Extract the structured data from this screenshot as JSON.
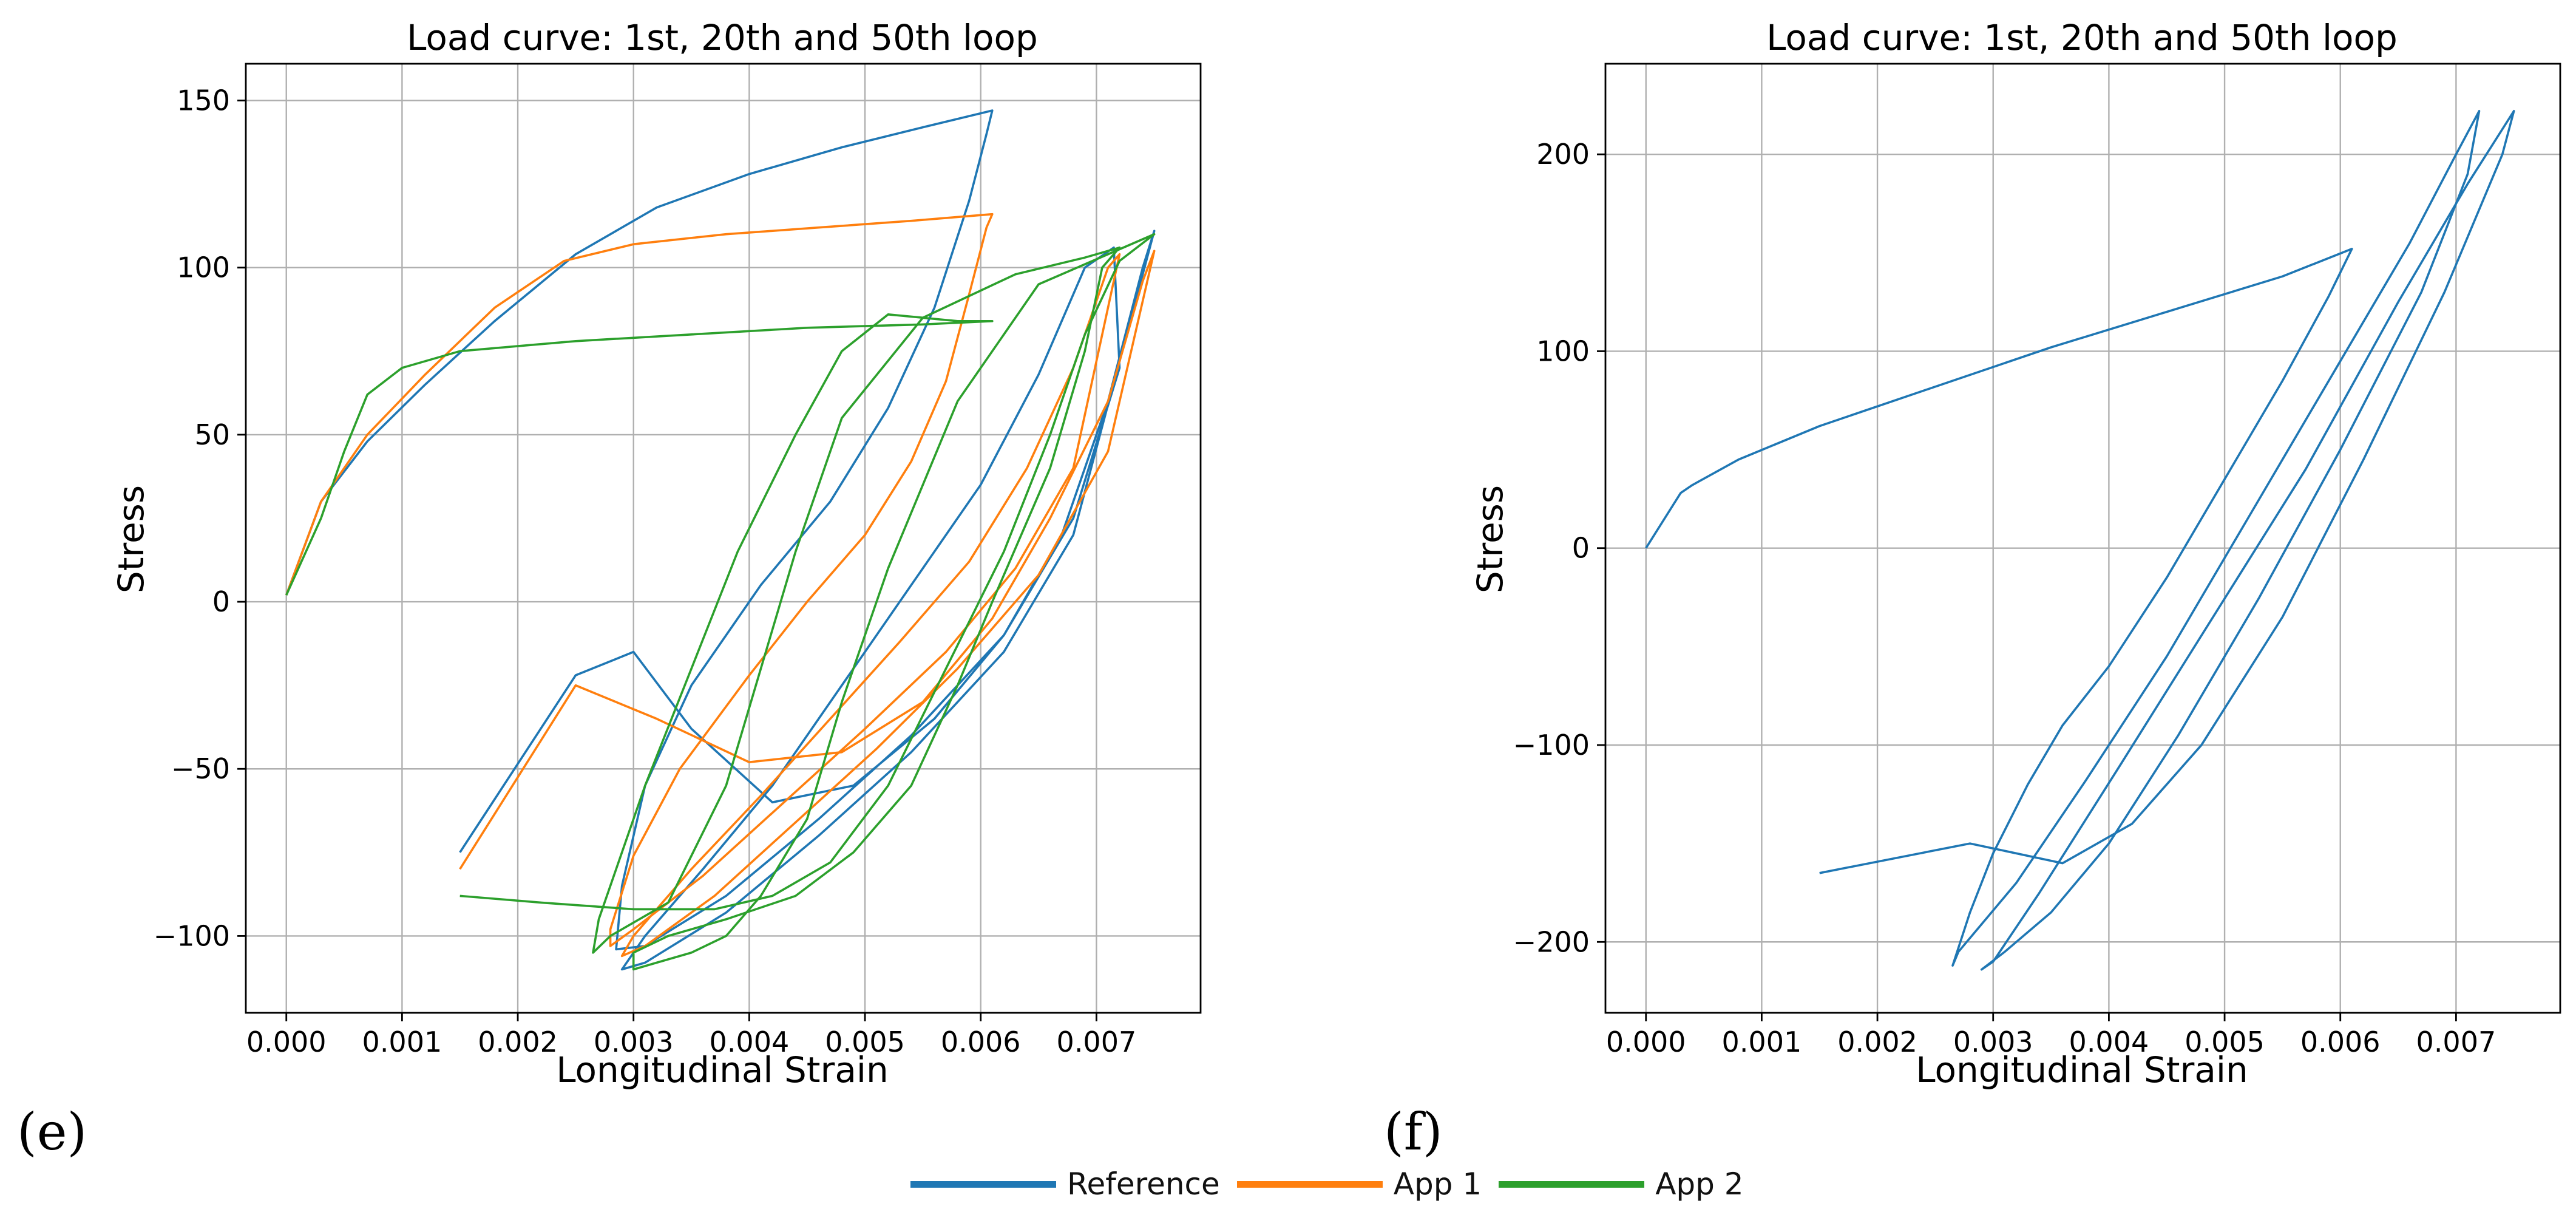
{
  "figure": {
    "panel_labels": [
      "(e)",
      "(f)"
    ],
    "legend": [
      {
        "label": "Reference",
        "color": "#1f77b4"
      },
      {
        "label": "App 1",
        "color": "#ff7f0e"
      },
      {
        "label": "App 2",
        "color": "#2ca02c"
      }
    ]
  },
  "chart_data": [
    {
      "type": "line",
      "title": "Load curve: 1st, 20th and 50th loop",
      "xlabel": "Longitudinal Strain",
      "ylabel": "Stress",
      "xlim": [
        -0.00035,
        0.0079
      ],
      "ylim": [
        -123,
        161
      ],
      "xticks": [
        0.0,
        0.001,
        0.002,
        0.003,
        0.004,
        0.005,
        0.006,
        0.007
      ],
      "xtick_labels": [
        "0.000",
        "0.001",
        "0.002",
        "0.003",
        "0.004",
        "0.005",
        "0.006",
        "0.007"
      ],
      "yticks": [
        -100,
        -50,
        0,
        50,
        100,
        150
      ],
      "ytick_labels": [
        "−100",
        "−50",
        "0",
        "50",
        "100",
        "150"
      ],
      "grid": true,
      "series": [
        {
          "name": "Reference",
          "color": "#1f77b4",
          "x": [
            0.0,
            0.0003,
            0.0007,
            0.0012,
            0.0018,
            0.0025,
            0.0032,
            0.004,
            0.0048,
            0.0055,
            0.0061,
            0.00605,
            0.0059,
            0.0056,
            0.0052,
            0.0047,
            0.0041,
            0.0035,
            0.0031,
            0.0029,
            0.00285,
            0.0031,
            0.0038,
            0.0046,
            0.0054,
            0.0062,
            0.0068,
            0.0072,
            0.00715,
            0.0069,
            0.0065,
            0.006,
            0.0054,
            0.0048,
            0.0042,
            0.0036,
            0.0031,
            0.0029,
            0.0029,
            0.0031,
            0.0038,
            0.0046,
            0.0054,
            0.0062,
            0.0068,
            0.0075,
            0.0074,
            0.0071,
            0.0067,
            0.0062,
            0.0056,
            0.0049,
            0.0042,
            0.0035,
            0.003,
            0.0025,
            0.0015
          ],
          "y": [
            2,
            30,
            48,
            65,
            84,
            104,
            118,
            128,
            136,
            142,
            147,
            140,
            120,
            88,
            58,
            30,
            5,
            -25,
            -55,
            -85,
            -104,
            -103,
            -88,
            -65,
            -40,
            -10,
            25,
            70,
            106,
            100,
            68,
            35,
            5,
            -25,
            -55,
            -80,
            -100,
            -110,
            -110,
            -108,
            -93,
            -70,
            -45,
            -15,
            20,
            111,
            100,
            60,
            20,
            -10,
            -35,
            -55,
            -60,
            -38,
            -15,
            -22,
            -75
          ]
        },
        {
          "name": "App 1",
          "color": "#ff7f0e",
          "x": [
            0.0,
            0.0003,
            0.0007,
            0.0012,
            0.0018,
            0.0024,
            0.003,
            0.0038,
            0.0046,
            0.0054,
            0.0061,
            0.00605,
            0.0059,
            0.0057,
            0.0054,
            0.005,
            0.0045,
            0.004,
            0.0034,
            0.003,
            0.0028,
            0.0028,
            0.003,
            0.0036,
            0.0043,
            0.005,
            0.0057,
            0.0063,
            0.0068,
            0.0072,
            0.0071,
            0.0068,
            0.0064,
            0.0059,
            0.0053,
            0.0047,
            0.0041,
            0.0035,
            0.003,
            0.0029,
            0.0031,
            0.0037,
            0.0044,
            0.0051,
            0.0058,
            0.0065,
            0.0071,
            0.0075,
            0.0074,
            0.0071,
            0.0066,
            0.0061,
            0.0055,
            0.0048,
            0.004,
            0.0032,
            0.0025,
            0.0015
          ],
          "y": [
            2,
            30,
            50,
            68,
            88,
            102,
            107,
            110,
            112,
            114,
            116,
            112,
            92,
            66,
            42,
            20,
            0,
            -22,
            -50,
            -76,
            -98,
            -103,
            -98,
            -82,
            -60,
            -38,
            -15,
            10,
            40,
            104,
            100,
            70,
            40,
            12,
            -12,
            -35,
            -58,
            -80,
            -100,
            -106,
            -103,
            -88,
            -66,
            -44,
            -20,
            8,
            45,
            105,
            96,
            60,
            25,
            -5,
            -30,
            -45,
            -48,
            -35,
            -25,
            -80
          ]
        },
        {
          "name": "App 2",
          "color": "#2ca02c",
          "x": [
            0.0,
            0.0003,
            0.0005,
            0.0007,
            0.001,
            0.0015,
            0.0025,
            0.0035,
            0.0045,
            0.0055,
            0.0061,
            0.0058,
            0.0052,
            0.0048,
            0.0044,
            0.0039,
            0.0035,
            0.0031,
            0.00285,
            0.0027,
            0.00265,
            0.0028,
            0.0033,
            0.0038,
            0.0041,
            0.0044,
            0.0048,
            0.0055,
            0.0063,
            0.0069,
            0.0072,
            0.00705,
            0.0069,
            0.0066,
            0.0061,
            0.0058,
            0.0054,
            0.0049,
            0.0044,
            0.0038,
            0.0033,
            0.003,
            0.003,
            0.0032,
            0.0035,
            0.0038,
            0.0041,
            0.0045,
            0.0048,
            0.0052,
            0.0058,
            0.0065,
            0.0075,
            0.0072,
            0.0069,
            0.0066,
            0.0062,
            0.0057,
            0.0052,
            0.0047,
            0.0042,
            0.0037,
            0.003,
            0.0022,
            0.0015
          ],
          "y": [
            2,
            25,
            45,
            62,
            70,
            75,
            78,
            80,
            82,
            83,
            84,
            84,
            86,
            75,
            50,
            15,
            -20,
            -55,
            -80,
            -95,
            -105,
            -100,
            -90,
            -55,
            -20,
            15,
            55,
            85,
            98,
            103,
            106,
            100,
            75,
            40,
            0,
            -25,
            -55,
            -75,
            -88,
            -95,
            -100,
            -105,
            -110,
            -108,
            -105,
            -100,
            -88,
            -65,
            -30,
            10,
            60,
            95,
            110,
            102,
            80,
            50,
            15,
            -20,
            -55,
            -78,
            -88,
            -92,
            -92,
            -90,
            -88
          ]
        }
      ]
    },
    {
      "type": "line",
      "title": "Load curve: 1st, 20th and 50th loop",
      "xlabel": "Longitudinal Strain",
      "ylabel": "Stress",
      "xlim": [
        -0.00035,
        0.0079
      ],
      "ylim": [
        -236,
        246
      ],
      "xticks": [
        0.0,
        0.001,
        0.002,
        0.003,
        0.004,
        0.005,
        0.006,
        0.007
      ],
      "xtick_labels": [
        "0.000",
        "0.001",
        "0.002",
        "0.003",
        "0.004",
        "0.005",
        "0.006",
        "0.007"
      ],
      "yticks": [
        -200,
        -100,
        0,
        100,
        200
      ],
      "ytick_labels": [
        "−200",
        "−100",
        "0",
        "100",
        "200"
      ],
      "grid": true,
      "series": [
        {
          "name": "Reference",
          "color": "#1f77b4",
          "x": [
            0.0,
            0.0003,
            0.0004,
            0.0008,
            0.0015,
            0.0025,
            0.0035,
            0.0045,
            0.0055,
            0.0061,
            0.0059,
            0.0055,
            0.005,
            0.0045,
            0.004,
            0.0036,
            0.0033,
            0.003,
            0.0028,
            0.00265,
            0.0027,
            0.0032,
            0.0038,
            0.0045,
            0.0052,
            0.006,
            0.0066,
            0.007,
            0.0072,
            0.0071,
            0.0067,
            0.006,
            0.0053,
            0.0046,
            0.004,
            0.0035,
            0.0031,
            0.0029,
            0.003,
            0.0034,
            0.0041,
            0.0049,
            0.0057,
            0.0065,
            0.0071,
            0.0075,
            0.0074,
            0.0069,
            0.0062,
            0.0055,
            0.0048,
            0.0042,
            0.0036,
            0.0028,
            0.0015
          ],
          "y": [
            0,
            28,
            32,
            45,
            62,
            82,
            102,
            120,
            138,
            152,
            128,
            85,
            35,
            -15,
            -60,
            -90,
            -120,
            -155,
            -185,
            -212,
            -205,
            -170,
            -118,
            -55,
            15,
            95,
            155,
            200,
            222,
            190,
            130,
            50,
            -25,
            -95,
            -150,
            -185,
            -205,
            -214,
            -210,
            -175,
            -110,
            -35,
            40,
            125,
            185,
            222,
            200,
            130,
            45,
            -35,
            -100,
            -140,
            -160,
            -150,
            -165
          ]
        }
      ]
    }
  ]
}
